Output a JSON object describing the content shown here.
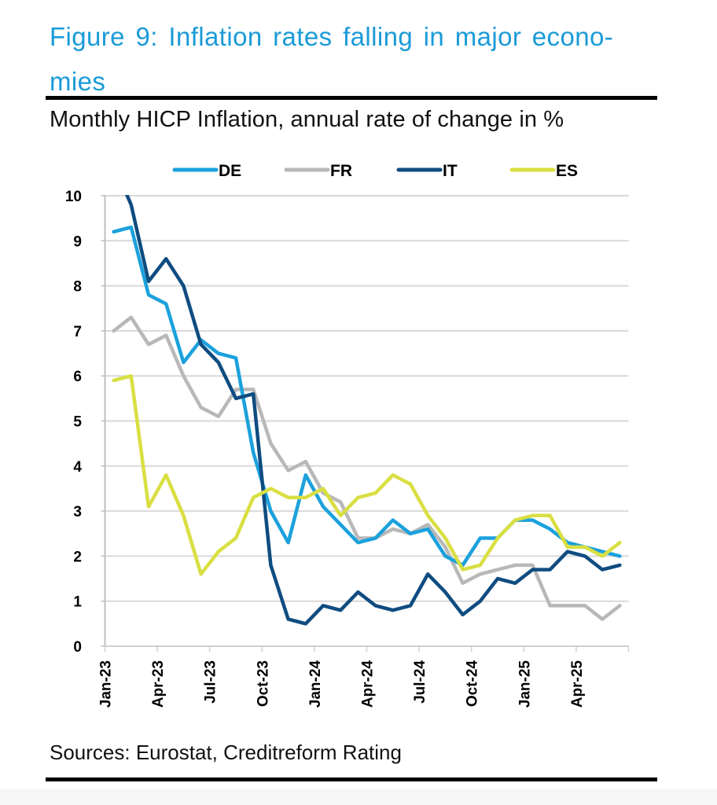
{
  "header": {
    "title": "Figure 9: Inflation rates falling in major econo-mies",
    "title_line1": "Figure 9: Inflation rates falling in major econo-",
    "title_line2": "mies",
    "subtitle": "Monthly HICP Inflation, annual rate of change in %"
  },
  "footer": {
    "source": "Sources: Eurostat, Creditreform Rating"
  },
  "chart_data": {
    "type": "line",
    "title": "Monthly HICP Inflation, annual rate of change in %",
    "xlabel": "",
    "ylabel": "",
    "ylim": [
      0,
      10
    ],
    "yticks": [
      "0",
      "1",
      "2",
      "3",
      "4",
      "5",
      "6",
      "7",
      "8",
      "9",
      "10"
    ],
    "grid": true,
    "legend": "top-center",
    "x": [
      "Jan-23",
      "Feb-23",
      "Mar-23",
      "Apr-23",
      "May-23",
      "Jun-23",
      "Jul-23",
      "Aug-23",
      "Sep-23",
      "Oct-23",
      "Nov-23",
      "Dec-23",
      "Jan-24",
      "Feb-24",
      "Mar-24",
      "Apr-24",
      "May-24",
      "Jun-24",
      "Jul-24",
      "Aug-24",
      "Sep-24",
      "Oct-24",
      "Nov-24",
      "Dec-24",
      "Jan-25",
      "Feb-25",
      "Mar-25",
      "Apr-25",
      "May-25",
      "Jun-25"
    ],
    "xtick_labels": [
      "Jan-23",
      "Apr-23",
      "Jul-23",
      "Oct-23",
      "Jan-24",
      "Apr-24",
      "Jul-24",
      "Oct-24",
      "Jan-25",
      "Apr-25"
    ],
    "series": [
      {
        "name": "DE",
        "color": "#1ba1dc",
        "values": [
          9.2,
          9.3,
          7.8,
          7.6,
          6.3,
          6.8,
          6.5,
          6.4,
          4.3,
          3.0,
          2.3,
          3.8,
          3.1,
          2.7,
          2.3,
          2.4,
          2.8,
          2.5,
          2.6,
          2.0,
          1.8,
          2.4,
          2.4,
          2.8,
          2.8,
          2.6,
          2.3,
          2.2,
          2.1,
          2.0
        ]
      },
      {
        "name": "FR",
        "color": "#b8b8b8",
        "values": [
          7.0,
          7.3,
          6.7,
          6.9,
          6.0,
          5.3,
          5.1,
          5.7,
          5.7,
          4.5,
          3.9,
          4.1,
          3.4,
          3.2,
          2.4,
          2.4,
          2.6,
          2.5,
          2.7,
          2.2,
          1.4,
          1.6,
          1.7,
          1.8,
          1.8,
          0.9,
          0.9,
          0.9,
          0.6,
          0.9
        ]
      },
      {
        "name": "IT",
        "color": "#0f4c81",
        "values": [
          10.7,
          9.8,
          8.1,
          8.6,
          8.0,
          6.7,
          6.3,
          5.5,
          5.6,
          1.8,
          0.6,
          0.5,
          0.9,
          0.8,
          1.2,
          0.9,
          0.8,
          0.9,
          1.6,
          1.2,
          0.7,
          1.0,
          1.5,
          1.4,
          1.7,
          1.7,
          2.1,
          2.0,
          1.7,
          1.8
        ]
      },
      {
        "name": "ES",
        "color": "#d9df42",
        "values": [
          5.9,
          6.0,
          3.1,
          3.8,
          2.9,
          1.6,
          2.1,
          2.4,
          3.3,
          3.5,
          3.3,
          3.3,
          3.5,
          2.9,
          3.3,
          3.4,
          3.8,
          3.6,
          2.9,
          2.4,
          1.7,
          1.8,
          2.4,
          2.8,
          2.9,
          2.9,
          2.2,
          2.2,
          2.0,
          2.3
        ]
      }
    ]
  }
}
